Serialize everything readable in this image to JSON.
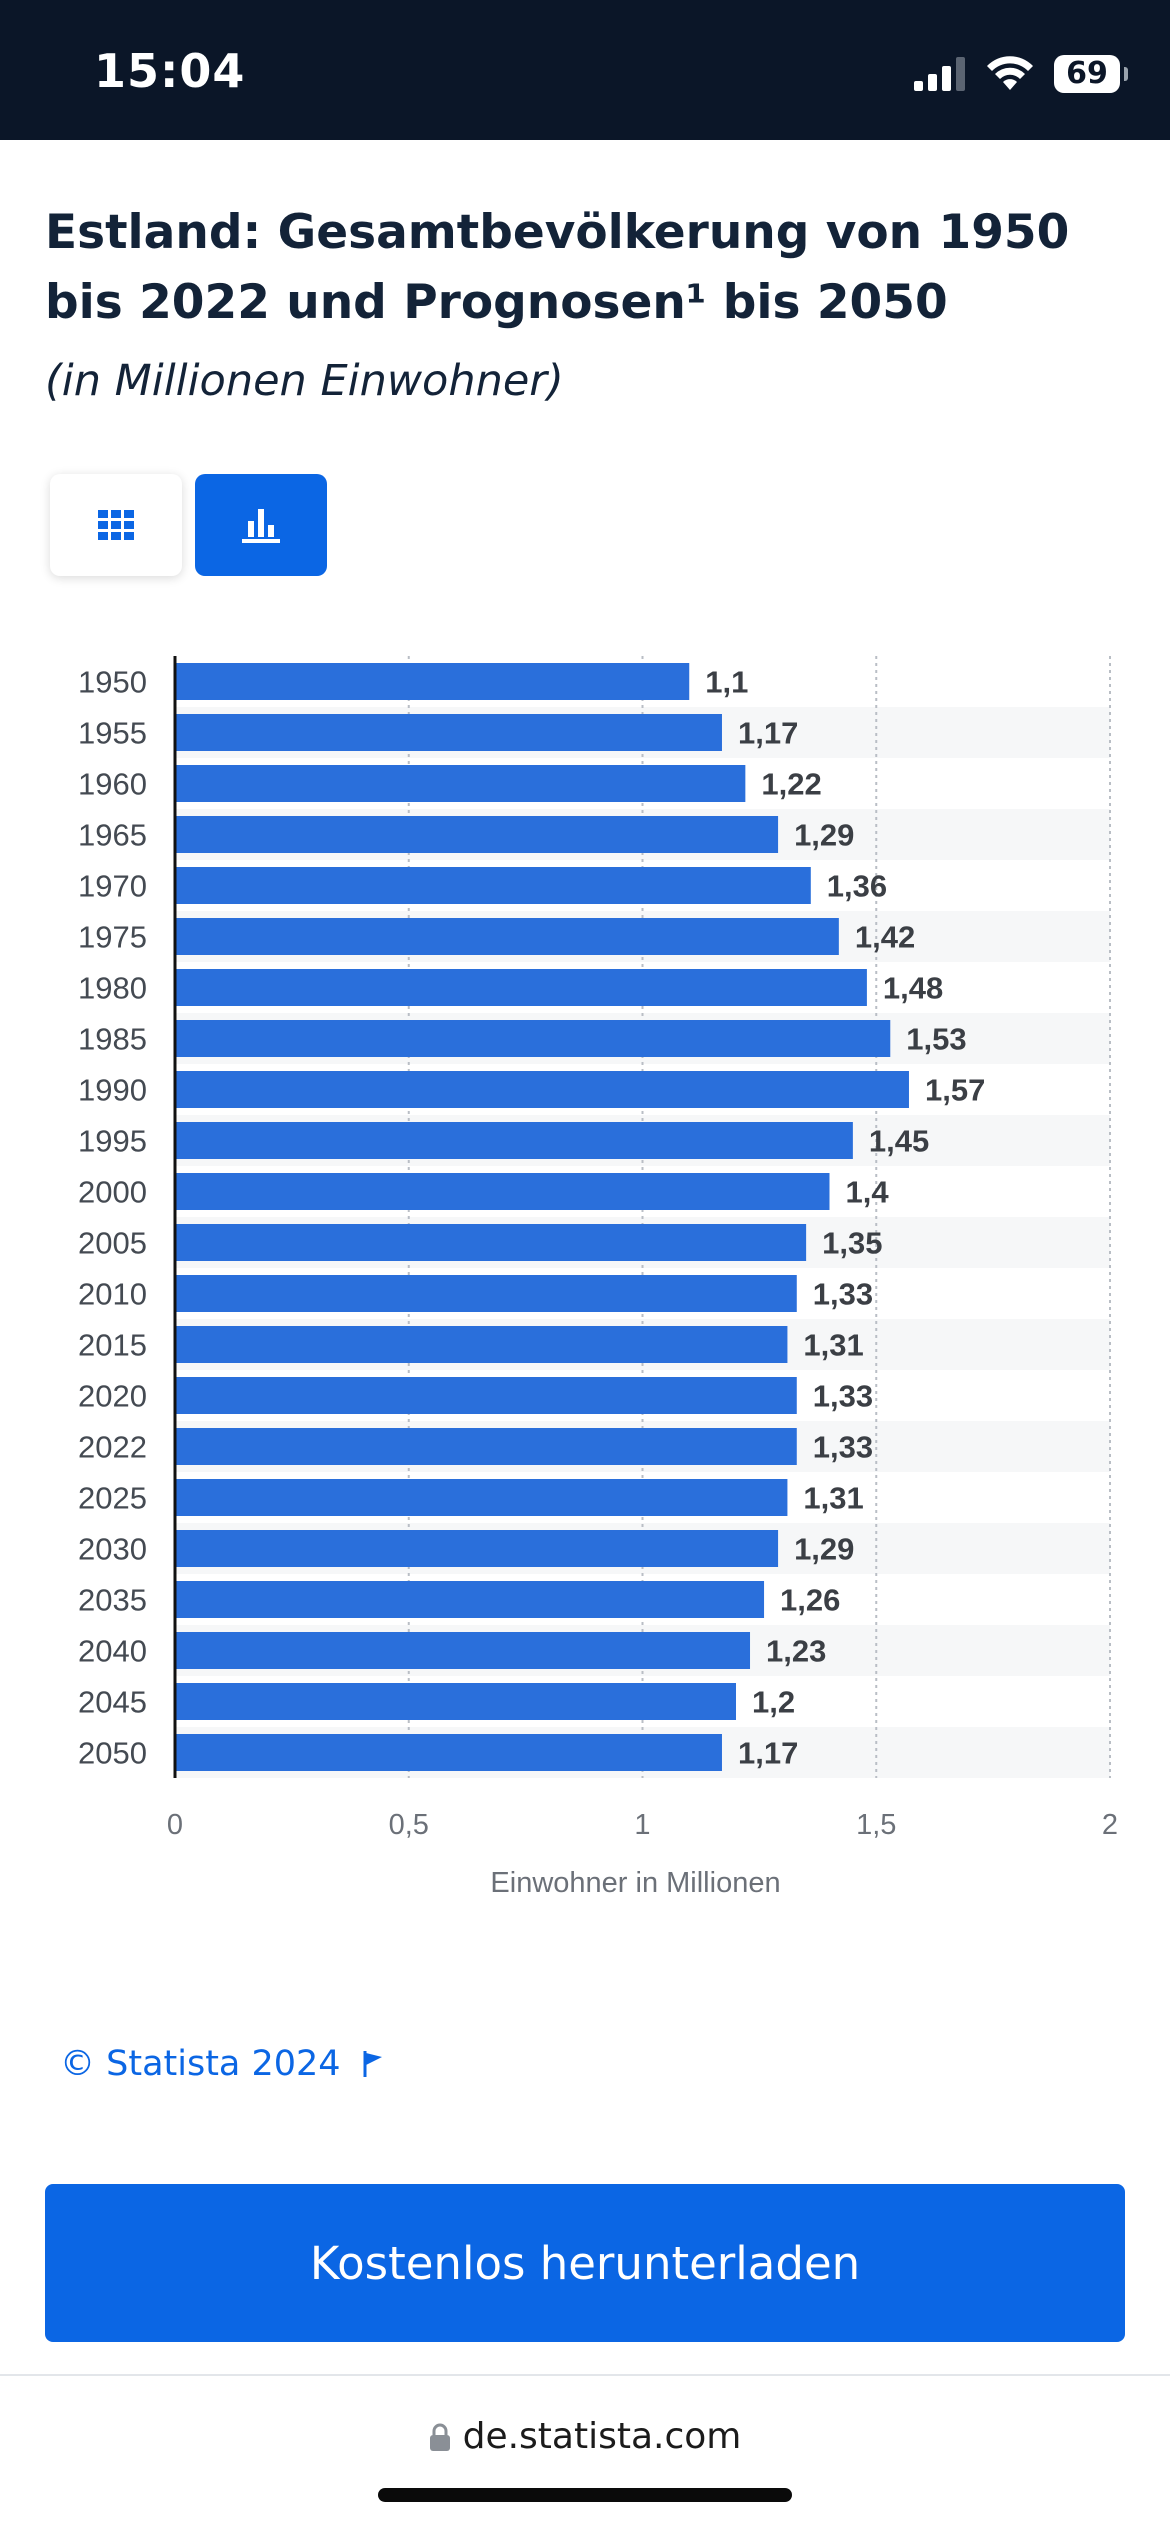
{
  "status_bar": {
    "time": "15:04",
    "battery": "69"
  },
  "header": {
    "title": "Estland: Gesamtbevölkerung von 1950 bis 2022 und Prognosen¹ bis 2050",
    "subtitle": "(in Millionen Einwohner)"
  },
  "view_toggle": {
    "active": "chart"
  },
  "chart_data": {
    "type": "bar",
    "orientation": "horizontal",
    "categories": [
      "1950",
      "1955",
      "1960",
      "1965",
      "1970",
      "1975",
      "1980",
      "1985",
      "1990",
      "1995",
      "2000",
      "2005",
      "2010",
      "2015",
      "2020",
      "2022",
      "2025",
      "2030",
      "2035",
      "2040",
      "2045",
      "2050"
    ],
    "values": [
      1.1,
      1.17,
      1.22,
      1.29,
      1.36,
      1.42,
      1.48,
      1.53,
      1.57,
      1.45,
      1.4,
      1.35,
      1.33,
      1.31,
      1.33,
      1.33,
      1.31,
      1.29,
      1.26,
      1.23,
      1.2,
      1.17
    ],
    "value_labels": [
      "1,1",
      "1,17",
      "1,22",
      "1,29",
      "1,36",
      "1,42",
      "1,48",
      "1,53",
      "1,57",
      "1,45",
      "1,4",
      "1,35",
      "1,33",
      "1,31",
      "1,33",
      "1,33",
      "1,31",
      "1,29",
      "1,26",
      "1,23",
      "1,2",
      "1,17"
    ],
    "xlabel": "Einwohner in Millionen",
    "ylabel": "",
    "xlim": [
      0,
      2
    ],
    "x_ticks": [
      0,
      0.5,
      1,
      1.5,
      2
    ],
    "x_tick_labels": [
      "0",
      "0,5",
      "1",
      "1,5",
      "2"
    ],
    "grid": true,
    "bar_color": "#2a6fdb"
  },
  "footer": {
    "copyright": "© Statista 2024",
    "download_label": "Kostenlos herunterladen",
    "url": "de.statista.com"
  }
}
